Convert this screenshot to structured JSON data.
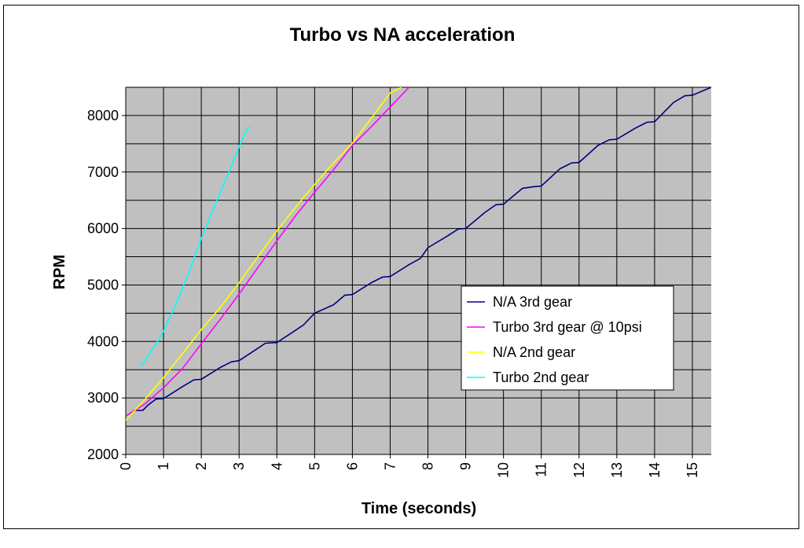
{
  "chart_data": {
    "type": "line",
    "title": "Turbo vs NA acceleration",
    "xlabel": "Time (seconds)",
    "ylabel": "RPM",
    "xlim": [
      0,
      15.5
    ],
    "ylim": [
      2000,
      8500
    ],
    "x_ticks": [
      0,
      1,
      2,
      3,
      4,
      5,
      6,
      7,
      8,
      9,
      10,
      11,
      12,
      13,
      14,
      15
    ],
    "x_tick_labels": [
      "0",
      "1",
      "2",
      "3",
      "4",
      "5",
      "6",
      "7",
      "8",
      "9",
      "10",
      "11",
      "12",
      "13",
      "14",
      "15"
    ],
    "y_ticks": [
      2000,
      3000,
      4000,
      5000,
      6000,
      7000,
      8000
    ],
    "y_tick_labels": [
      "2000",
      "3000",
      "4000",
      "5000",
      "6000",
      "7000",
      "8000"
    ],
    "grid": true,
    "plot_background": "#c0c0c0",
    "legend_position": "center-right",
    "series": [
      {
        "name": "N/A 3rd gear",
        "color": "#000080",
        "points": [
          [
            0.2,
            2780
          ],
          [
            0.45,
            2780
          ],
          [
            0.6,
            2880
          ],
          [
            0.8,
            2980
          ],
          [
            1.0,
            2990
          ],
          [
            1.5,
            3200
          ],
          [
            1.8,
            3320
          ],
          [
            2.0,
            3330
          ],
          [
            2.5,
            3540
          ],
          [
            2.8,
            3640
          ],
          [
            3.0,
            3660
          ],
          [
            3.5,
            3880
          ],
          [
            3.7,
            3970
          ],
          [
            4.0,
            3980
          ],
          [
            4.5,
            4200
          ],
          [
            4.7,
            4290
          ],
          [
            5.0,
            4500
          ],
          [
            5.5,
            4650
          ],
          [
            5.8,
            4820
          ],
          [
            6.0,
            4830
          ],
          [
            6.5,
            5040
          ],
          [
            6.8,
            5140
          ],
          [
            7.0,
            5150
          ],
          [
            7.5,
            5360
          ],
          [
            7.8,
            5470
          ],
          [
            8.0,
            5660
          ],
          [
            8.5,
            5860
          ],
          [
            8.8,
            5990
          ],
          [
            9.0,
            6000
          ],
          [
            9.5,
            6280
          ],
          [
            9.8,
            6420
          ],
          [
            10.0,
            6430
          ],
          [
            10.5,
            6710
          ],
          [
            10.8,
            6740
          ],
          [
            11.0,
            6750
          ],
          [
            11.5,
            7060
          ],
          [
            11.8,
            7160
          ],
          [
            12.0,
            7170
          ],
          [
            12.5,
            7470
          ],
          [
            12.8,
            7570
          ],
          [
            13.0,
            7580
          ],
          [
            13.5,
            7780
          ],
          [
            13.8,
            7880
          ],
          [
            14.0,
            7890
          ],
          [
            14.5,
            8230
          ],
          [
            14.8,
            8350
          ],
          [
            15.0,
            8360
          ],
          [
            15.5,
            8500
          ]
        ]
      },
      {
        "name": "Turbo 3rd gear @ 10psi",
        "color": "#ff00ff",
        "points": [
          [
            0.0,
            2680
          ],
          [
            0.5,
            2890
          ],
          [
            1.0,
            3180
          ],
          [
            1.5,
            3520
          ],
          [
            2.0,
            3960
          ],
          [
            2.5,
            4390
          ],
          [
            3.0,
            4840
          ],
          [
            3.5,
            5310
          ],
          [
            4.0,
            5780
          ],
          [
            4.5,
            6230
          ],
          [
            5.0,
            6640
          ],
          [
            5.5,
            7040
          ],
          [
            6.0,
            7470
          ],
          [
            6.5,
            7800
          ],
          [
            7.0,
            8150
          ],
          [
            7.5,
            8500
          ]
        ]
      },
      {
        "name": "N/A 2nd gear",
        "color": "#ffff00",
        "points": [
          [
            0.0,
            2600
          ],
          [
            0.5,
            2970
          ],
          [
            1.0,
            3360
          ],
          [
            1.5,
            3780
          ],
          [
            2.0,
            4210
          ],
          [
            2.5,
            4600
          ],
          [
            3.0,
            5040
          ],
          [
            3.5,
            5500
          ],
          [
            4.0,
            5960
          ],
          [
            4.5,
            6380
          ],
          [
            5.0,
            6780
          ],
          [
            5.5,
            7160
          ],
          [
            6.0,
            7510
          ],
          [
            6.5,
            7950
          ],
          [
            7.0,
            8400
          ],
          [
            7.3,
            8500
          ]
        ]
      },
      {
        "name": "Turbo 2nd gear",
        "color": "#00ffff",
        "points": [
          [
            0.4,
            3560
          ],
          [
            0.8,
            3960
          ],
          [
            1.0,
            4180
          ],
          [
            1.3,
            4620
          ],
          [
            1.6,
            5100
          ],
          [
            2.0,
            5820
          ],
          [
            2.4,
            6480
          ],
          [
            2.8,
            7110
          ],
          [
            3.0,
            7450
          ],
          [
            3.2,
            7750
          ],
          [
            3.3,
            7800
          ]
        ]
      }
    ]
  },
  "colors": {
    "plot_background": "#c0c0c0",
    "grid": "#000000"
  }
}
